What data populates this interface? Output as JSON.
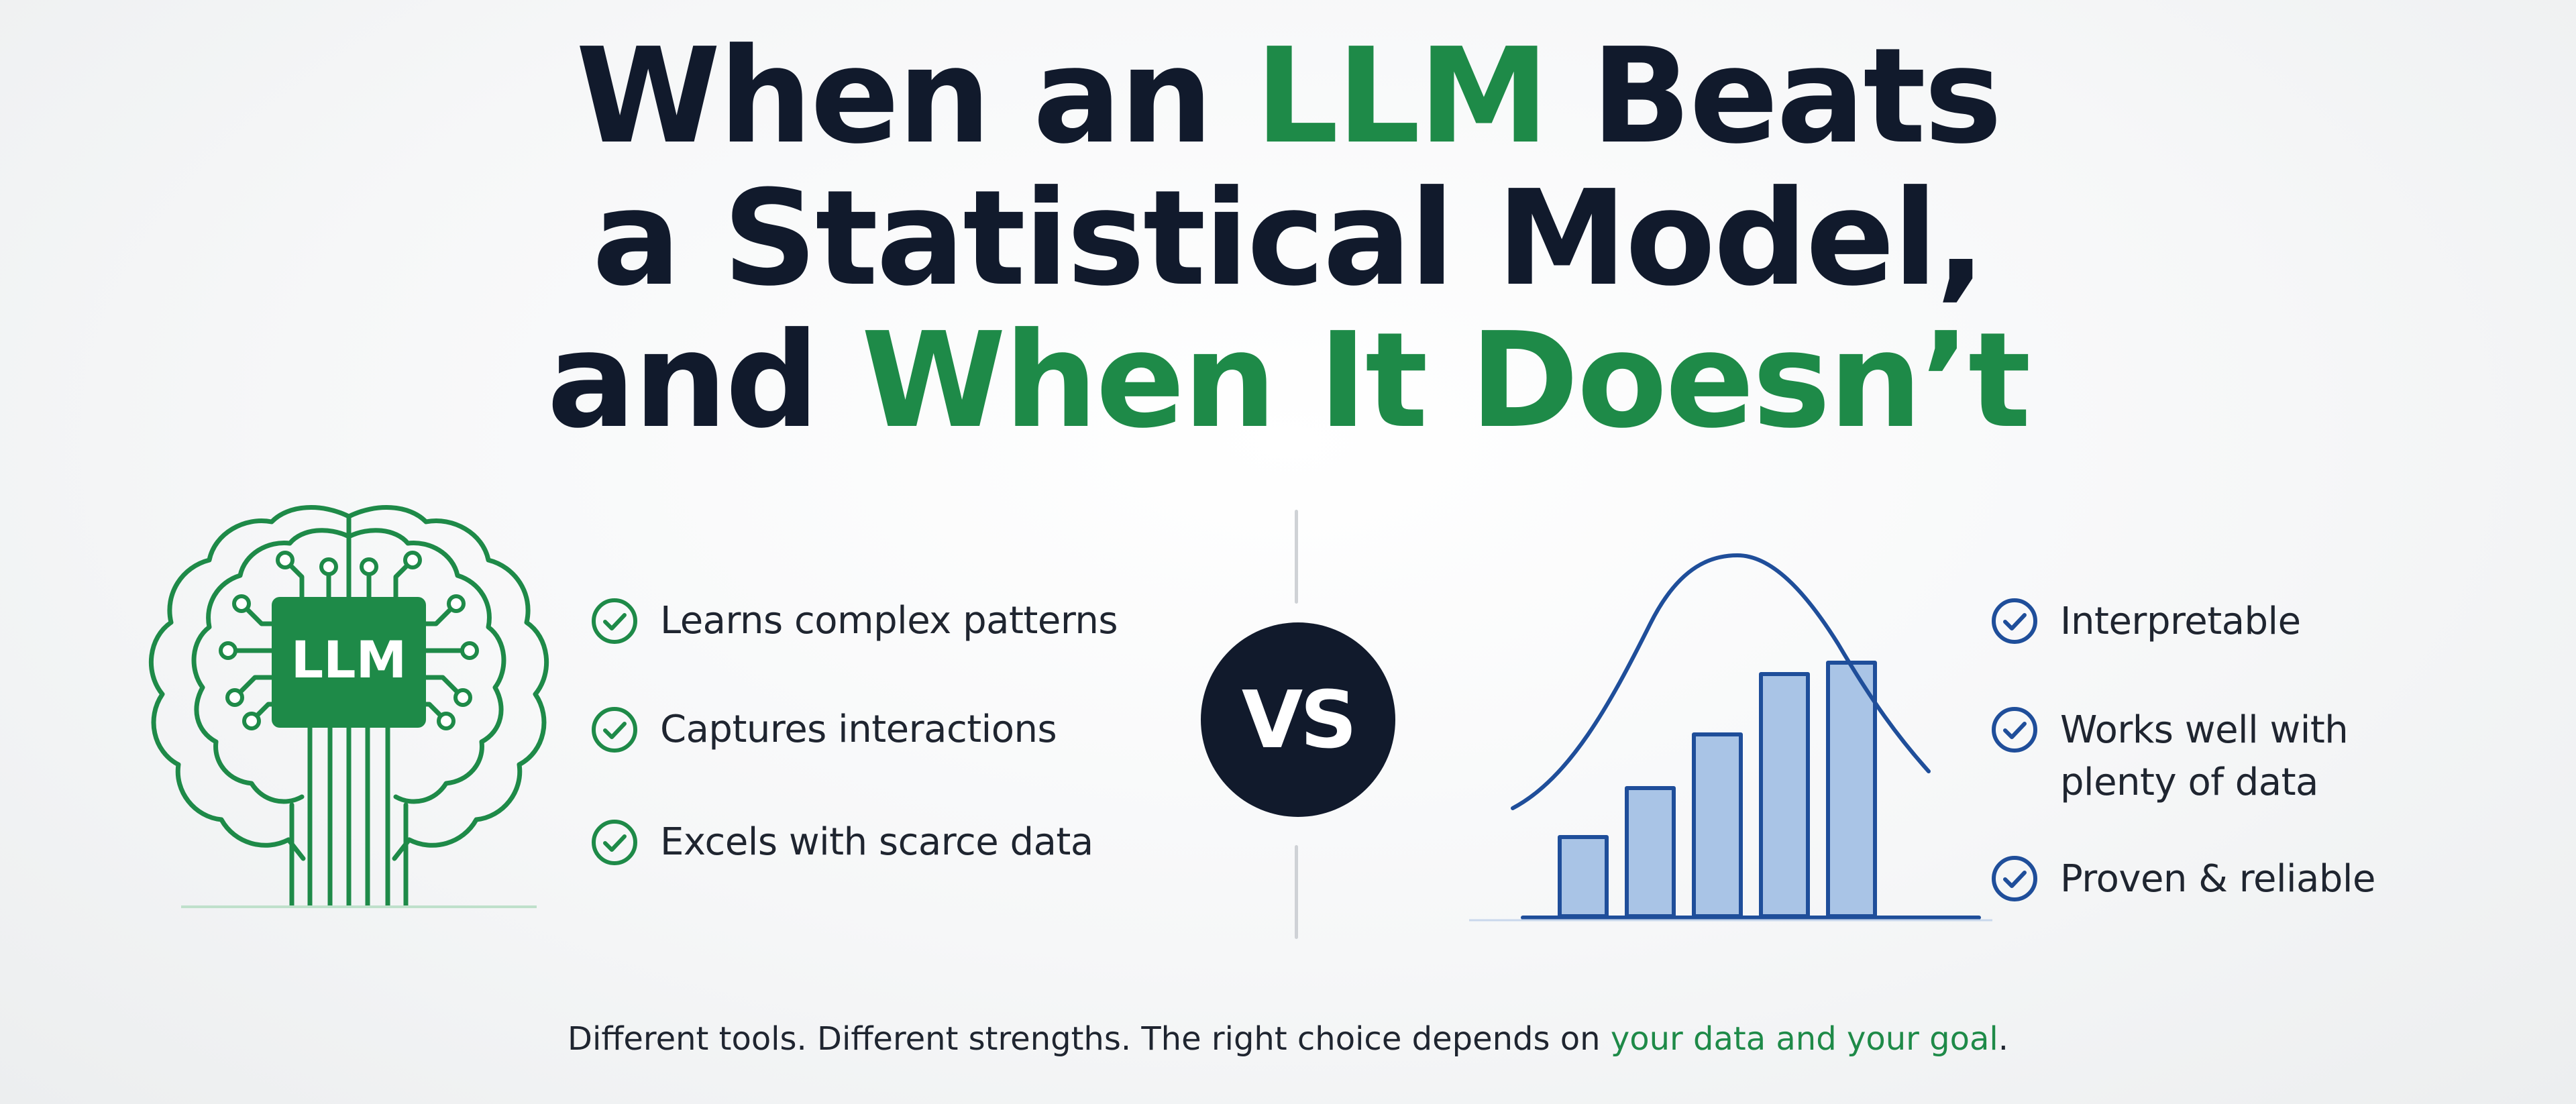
{
  "title": {
    "line1_part1": "When an ",
    "line1_accent": "LLM",
    "line1_part2": " Beats",
    "line2": "a Statistical Model,",
    "line3_part1": "and ",
    "line3_accent": "When It Doesn’t"
  },
  "left_panel": {
    "icon": "brain-circuit-icon",
    "chip_label": "LLM",
    "items": [
      {
        "label": "Learns complex patterns"
      },
      {
        "label": "Captures interactions"
      },
      {
        "label": "Excels with scarce data"
      }
    ]
  },
  "vs_label": "VS",
  "right_panel": {
    "icon": "bell-curve-histogram-icon",
    "items": [
      {
        "label_line1": "Interpretable",
        "label_line2": ""
      },
      {
        "label_line1": "Works well with",
        "label_line2": "plenty of data"
      },
      {
        "label_line1": "Proven & reliable",
        "label_line2": ""
      }
    ]
  },
  "footer": {
    "text": "Different tools. Different strengths. The right choice depends on ",
    "accent": "your data and your goal",
    "end": "."
  },
  "colors": {
    "navy": "#111a2c",
    "green": "#1e8a48",
    "blue": "#1f4e9a",
    "bar_fill": "#a9c4e6",
    "divider": "#cfd2d6"
  }
}
